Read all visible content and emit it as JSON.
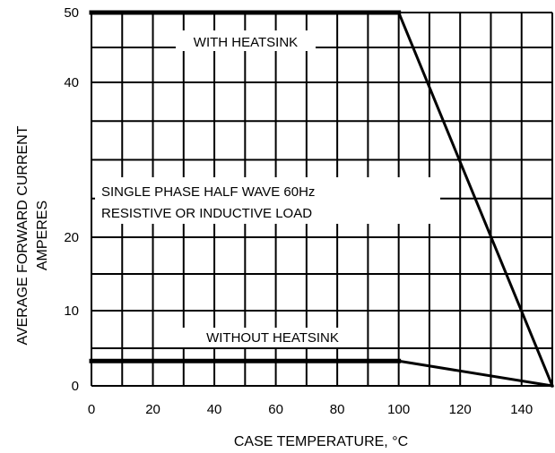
{
  "chart_data": {
    "type": "line",
    "title": "",
    "xlabel": "CASE TEMPERATURE, °C",
    "ylabel": [
      "AVERAGE FORWARD CURRENT",
      "AMPERES"
    ],
    "xlim": [
      0,
      150
    ],
    "ylim": [
      0,
      50
    ],
    "x_ticks": [
      "0",
      "20",
      "40",
      "60",
      "80",
      "100",
      "120",
      "140"
    ],
    "y_ticks": [
      "0",
      "10",
      "20",
      "40",
      "50"
    ],
    "grid": true,
    "series": [
      {
        "name": "WITH HEATSINK",
        "x": [
          0,
          100,
          150
        ],
        "y": [
          50,
          50,
          0
        ]
      },
      {
        "name": "WITHOUT HEATSINK",
        "x": [
          0,
          100,
          150
        ],
        "y": [
          3.3,
          3.3,
          0
        ]
      }
    ],
    "annotations": [
      "SINGLE PHASE HALF WAVE  60Hz",
      "RESISTIVE OR INDUCTIVE LOAD"
    ]
  }
}
